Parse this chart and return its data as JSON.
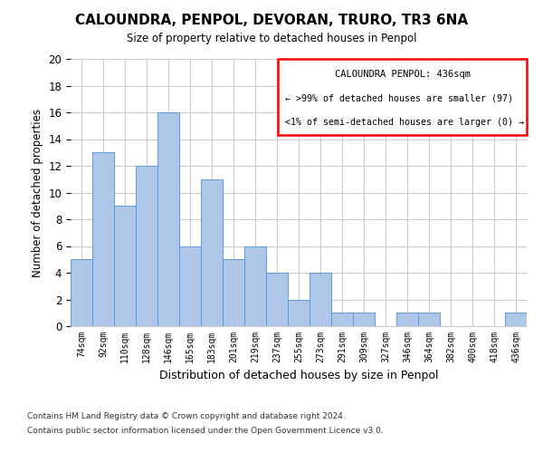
{
  "title": "CALOUNDRA, PENPOL, DEVORAN, TRURO, TR3 6NA",
  "subtitle": "Size of property relative to detached houses in Penpol",
  "xlabel": "Distribution of detached houses by size in Penpol",
  "ylabel": "Number of detached properties",
  "footnote1": "Contains HM Land Registry data © Crown copyright and database right 2024.",
  "footnote2": "Contains public sector information licensed under the Open Government Licence v3.0.",
  "categories": [
    "74sqm",
    "92sqm",
    "110sqm",
    "128sqm",
    "146sqm",
    "165sqm",
    "183sqm",
    "201sqm",
    "219sqm",
    "237sqm",
    "255sqm",
    "273sqm",
    "291sqm",
    "309sqm",
    "327sqm",
    "346sqm",
    "364sqm",
    "382sqm",
    "400sqm",
    "418sqm",
    "436sqm"
  ],
  "values": [
    5,
    13,
    9,
    12,
    16,
    6,
    11,
    5,
    6,
    4,
    2,
    4,
    1,
    1,
    0,
    1,
    1,
    0,
    0,
    0,
    1
  ],
  "bar_color": "#aec6e8",
  "bar_edge_color": "#5b9bd5",
  "ylim": [
    0,
    20
  ],
  "yticks": [
    0,
    2,
    4,
    6,
    8,
    10,
    12,
    14,
    16,
    18,
    20
  ],
  "grid_color": "#cccccc",
  "annotation_title": "CALOUNDRA PENPOL: 436sqm",
  "annotation_line1": "← >99% of detached houses are smaller (97)",
  "annotation_line2": "<1% of semi-detached houses are larger (0) →",
  "annotation_box_color": "#ff0000"
}
